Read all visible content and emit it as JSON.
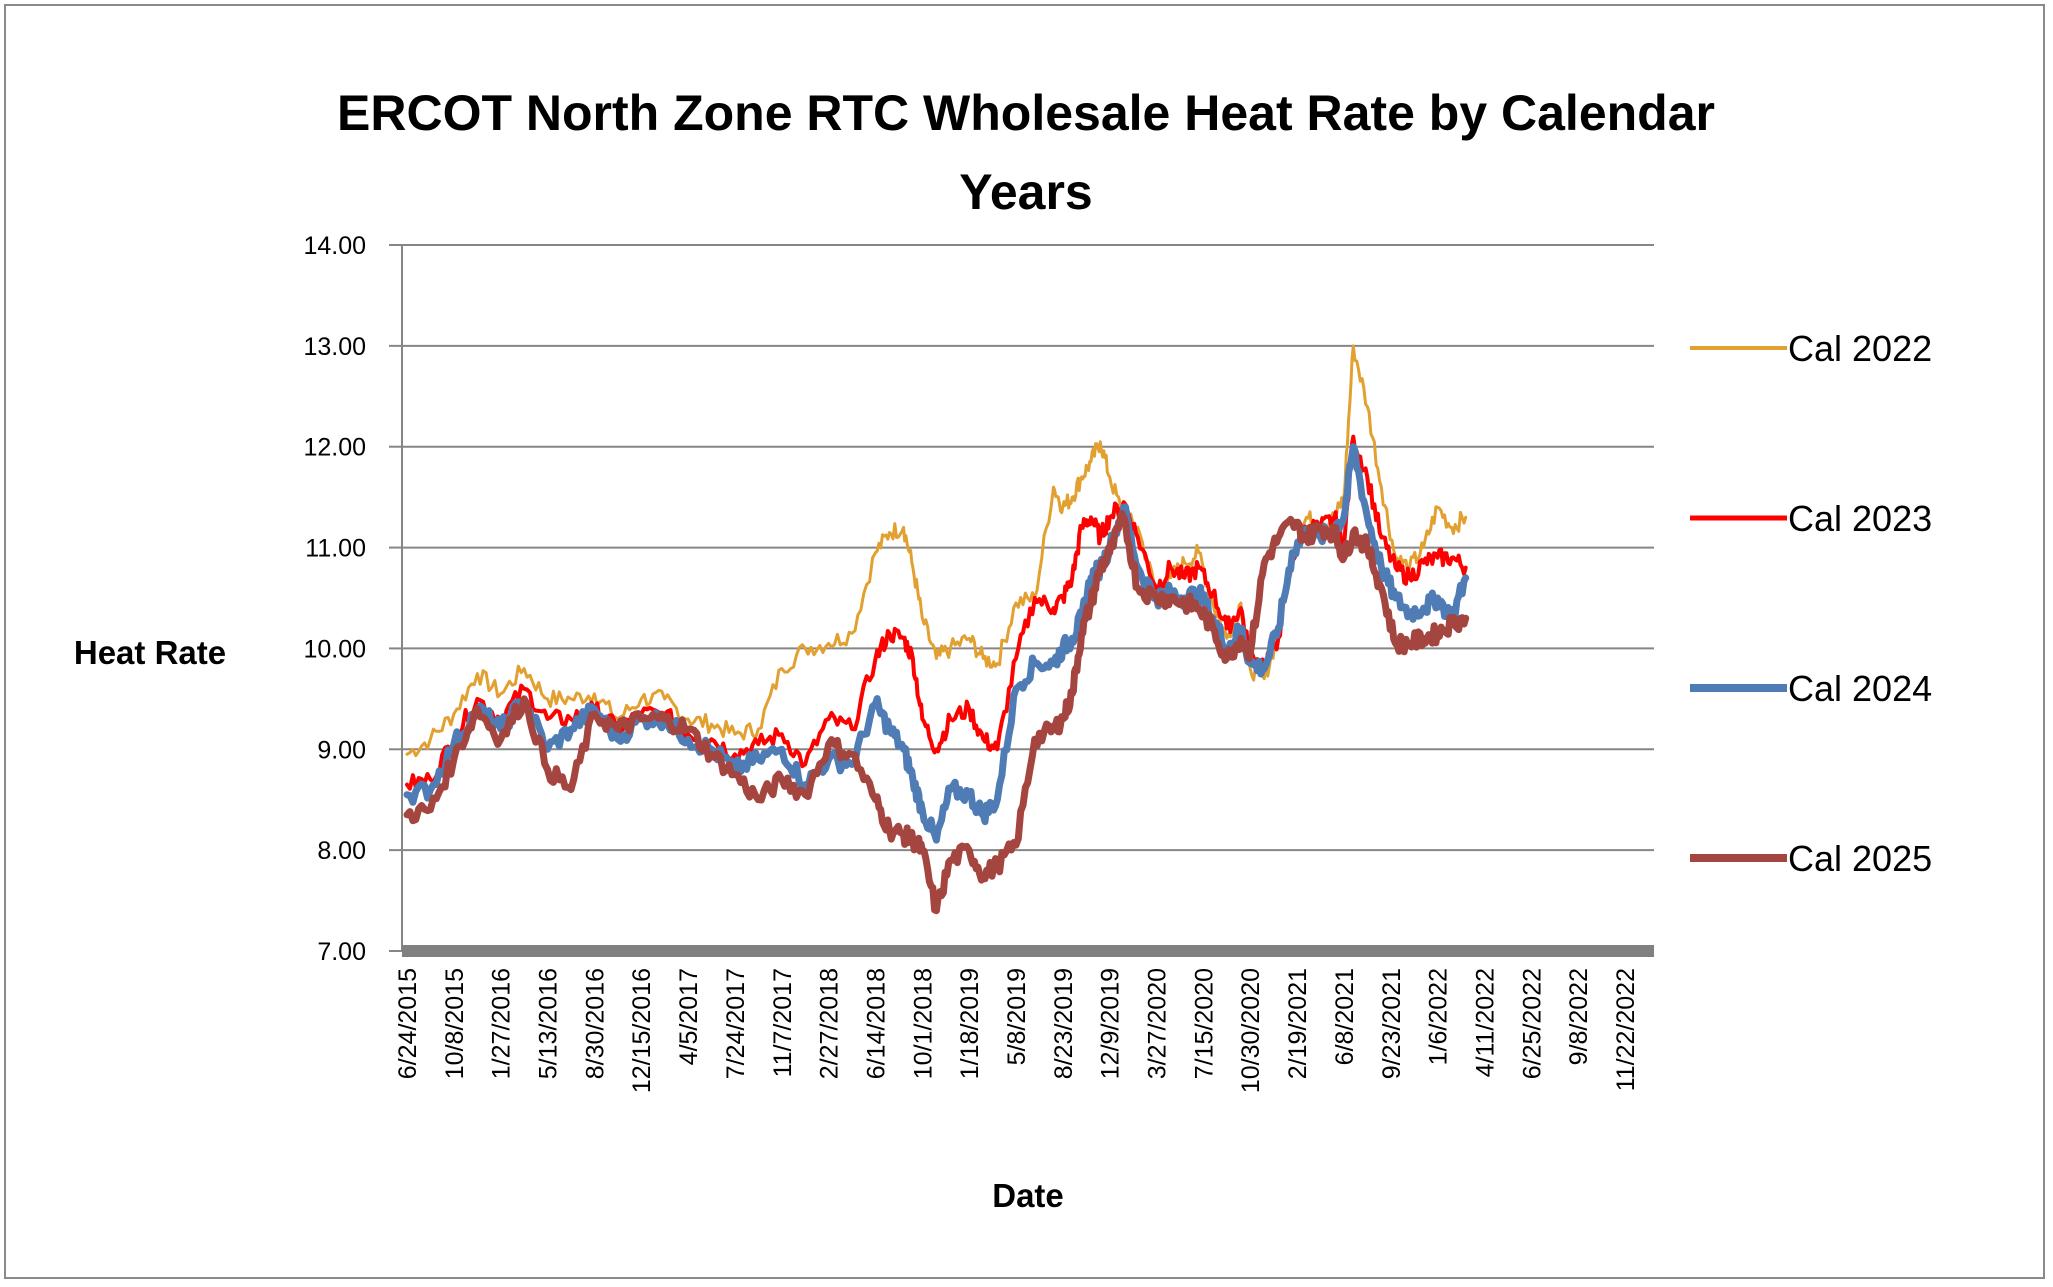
{
  "chart_data": {
    "type": "line",
    "title_lines": [
      "ERCOT North Zone RTC Wholesale Heat Rate by Calendar",
      "Years"
    ],
    "xlabel": "Date",
    "ylabel": "Heat Rate",
    "ylim": [
      7.0,
      14.0
    ],
    "yticks": [
      "7.00",
      "8.00",
      "9.00",
      "10.00",
      "11.00",
      "12.00",
      "13.00",
      "14.00"
    ],
    "xticks": [
      "6/24/2015",
      "10/8/2015",
      "1/27/2016",
      "5/13/2016",
      "8/30/2016",
      "12/15/2016",
      "4/5/2017",
      "7/24/2017",
      "11/7/2017",
      "2/27/2018",
      "6/14/2018",
      "10/1/2018",
      "1/18/2019",
      "5/8/2019",
      "8/23/2019",
      "12/9/2019",
      "3/27/2020",
      "7/15/2020",
      "10/30/2020",
      "2/19/2021",
      "6/8/2021",
      "9/23/2021",
      "1/6/2022",
      "4/11/2022",
      "6/25/2022",
      "9/8/2022",
      "11/22/2022"
    ],
    "x_index_range": [
      0,
      26
    ],
    "grid": true,
    "legend_position": "right",
    "series": [
      {
        "name": "Cal 2022",
        "color": "#E2A031",
        "x": [
          0,
          0.5,
          1,
          1.5,
          2,
          2.5,
          3,
          3.5,
          4,
          4.5,
          5,
          5.5,
          6,
          6.5,
          7,
          7.5,
          8,
          8.5,
          9,
          9.5,
          10,
          10.3,
          10.6,
          10.8,
          11,
          11.3,
          11.6,
          12,
          12.3,
          12.6,
          13,
          13.4,
          13.8,
          14,
          14.2,
          14.4,
          14.6,
          14.8,
          15,
          15.3,
          15.6,
          16,
          16.3,
          16.6,
          16.9,
          17.2,
          17.5,
          17.8,
          18,
          18.3,
          18.6,
          18.9,
          19.2,
          19.5,
          19.8,
          20,
          20.2,
          20.5,
          20.8,
          21.1,
          21.4,
          21.7,
          22,
          22.3,
          22.6
        ],
        "values": [
          8.95,
          9.1,
          9.35,
          9.75,
          9.55,
          9.8,
          9.5,
          9.5,
          9.55,
          9.3,
          9.5,
          9.5,
          9.3,
          9.25,
          9.15,
          9.2,
          9.8,
          10.0,
          10.05,
          10.15,
          10.95,
          11.15,
          11.2,
          10.8,
          10.3,
          9.9,
          10.0,
          10.1,
          9.9,
          9.85,
          10.45,
          10.5,
          11.6,
          11.4,
          11.5,
          11.7,
          11.85,
          12.05,
          11.7,
          11.3,
          11.2,
          10.55,
          10.7,
          10.85,
          10.95,
          10.45,
          10.1,
          10.45,
          9.8,
          9.7,
          10.15,
          10.9,
          11.3,
          11.2,
          11.3,
          11.5,
          13.0,
          12.4,
          11.6,
          10.9,
          10.8,
          11.0,
          11.4,
          11.2,
          11.3
        ]
      },
      {
        "name": "Cal 2023",
        "color": "#FF0000",
        "x": [
          0,
          0.5,
          1,
          1.5,
          2,
          2.5,
          3,
          3.5,
          4,
          4.5,
          5,
          5.5,
          6,
          6.5,
          7,
          7.5,
          8,
          8.5,
          9,
          9.5,
          10,
          10.3,
          10.6,
          10.8,
          11,
          11.3,
          11.6,
          12,
          12.3,
          12.6,
          13,
          13.4,
          13.8,
          14,
          14.2,
          14.4,
          14.6,
          14.8,
          15,
          15.3,
          15.6,
          16,
          16.3,
          16.6,
          16.9,
          17.2,
          17.5,
          17.8,
          18,
          18.3,
          18.6,
          18.9,
          19.2,
          19.5,
          19.8,
          20,
          20.2,
          20.5,
          20.8,
          21.1,
          21.4,
          21.7,
          22,
          22.3,
          22.6
        ],
        "values": [
          8.65,
          8.7,
          9.1,
          9.5,
          9.3,
          9.6,
          9.3,
          9.3,
          9.4,
          9.2,
          9.35,
          9.35,
          9.15,
          9.1,
          8.95,
          9.05,
          9.15,
          8.85,
          9.3,
          9.2,
          9.9,
          10.15,
          10.1,
          9.9,
          9.3,
          9.0,
          9.3,
          9.4,
          9.1,
          9.0,
          9.9,
          10.5,
          10.4,
          10.5,
          10.7,
          11.2,
          11.3,
          11.1,
          11.3,
          11.45,
          11.1,
          10.6,
          10.8,
          10.7,
          10.8,
          10.55,
          10.2,
          10.4,
          9.9,
          9.85,
          10.1,
          10.9,
          11.2,
          11.2,
          11.3,
          11.0,
          12.1,
          11.7,
          11.1,
          10.8,
          10.7,
          10.85,
          10.9,
          10.9,
          10.8
        ]
      },
      {
        "name": "Cal 2024",
        "color": "#4F7CB5",
        "x": [
          0,
          0.5,
          1,
          1.5,
          2,
          2.5,
          3,
          3.5,
          4,
          4.5,
          5,
          5.5,
          6,
          6.5,
          7,
          7.5,
          8,
          8.5,
          9,
          9.5,
          10,
          10.3,
          10.6,
          10.8,
          11,
          11.3,
          11.6,
          12,
          12.3,
          12.6,
          13,
          13.4,
          13.8,
          14,
          14.2,
          14.4,
          14.6,
          14.8,
          15,
          15.3,
          15.6,
          16,
          16.3,
          16.6,
          16.9,
          17.2,
          17.5,
          17.8,
          18,
          18.3,
          18.6,
          18.9,
          19.2,
          19.5,
          19.8,
          20,
          20.2,
          20.5,
          20.8,
          21.1,
          21.4,
          21.7,
          22,
          22.3,
          22.6
        ],
        "values": [
          8.55,
          8.6,
          9.05,
          9.4,
          9.2,
          9.5,
          9.0,
          9.2,
          9.4,
          9.1,
          9.3,
          9.3,
          9.1,
          9.0,
          8.8,
          8.9,
          9.0,
          8.65,
          8.9,
          8.85,
          9.45,
          9.2,
          9.0,
          8.7,
          8.4,
          8.1,
          8.6,
          8.55,
          8.35,
          8.5,
          9.6,
          9.85,
          9.85,
          10.0,
          10.1,
          10.3,
          10.7,
          10.8,
          11.0,
          11.4,
          10.8,
          10.5,
          10.55,
          10.5,
          10.55,
          10.3,
          10.0,
          10.2,
          9.85,
          9.8,
          10.2,
          10.95,
          11.15,
          11.1,
          11.2,
          11.3,
          12.0,
          11.3,
          10.8,
          10.5,
          10.35,
          10.4,
          10.5,
          10.3,
          10.7
        ]
      },
      {
        "name": "Cal 2025",
        "color": "#A5453F",
        "x": [
          0,
          0.5,
          1,
          1.5,
          2,
          2.5,
          3,
          3.5,
          4,
          4.5,
          5,
          5.5,
          6,
          6.5,
          7,
          7.5,
          8,
          8.5,
          9,
          9.5,
          10,
          10.3,
          10.6,
          10.8,
          11,
          11.3,
          11.6,
          12,
          12.3,
          12.6,
          13,
          13.4,
          13.8,
          14,
          14.2,
          14.4,
          14.6,
          14.8,
          15,
          15.3,
          15.6,
          16,
          16.3,
          16.6,
          16.9,
          17.2,
          17.5,
          17.8,
          18,
          18.3,
          18.6,
          18.9,
          19.2,
          19.5,
          19.8,
          20,
          20.2,
          20.5,
          20.8,
          21.1,
          21.4,
          21.7,
          22,
          22.3,
          22.6
        ],
        "values": [
          8.35,
          8.4,
          8.9,
          9.4,
          9.1,
          9.5,
          8.8,
          8.6,
          9.35,
          9.2,
          9.3,
          9.3,
          9.2,
          8.95,
          8.75,
          8.5,
          8.7,
          8.55,
          9.05,
          8.95,
          8.5,
          8.2,
          8.15,
          8.1,
          8.0,
          7.4,
          7.9,
          8.0,
          7.75,
          7.85,
          8.05,
          9.1,
          9.2,
          9.3,
          9.55,
          10.15,
          10.45,
          10.8,
          10.95,
          11.3,
          10.6,
          10.5,
          10.5,
          10.45,
          10.4,
          10.2,
          9.9,
          10.1,
          9.95,
          10.85,
          11.1,
          11.25,
          11.1,
          11.2,
          11.15,
          10.9,
          11.15,
          11.0,
          10.6,
          10.05,
          10.05,
          10.1,
          10.15,
          10.25,
          10.3
        ]
      }
    ]
  }
}
